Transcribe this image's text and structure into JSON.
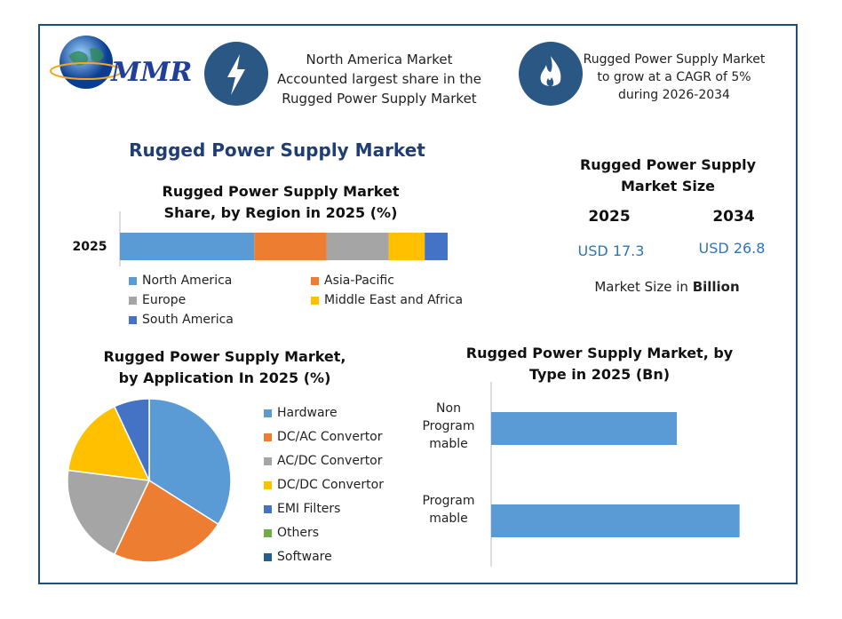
{
  "header": {
    "logo": "MMR",
    "highlights": [
      "North America Market Accounted largest share in the Rugged Power Supply Market",
      "Rugged Power Supply Market to grow at a CAGR of 5% during 2026-2034"
    ]
  },
  "title": "Rugged Power Supply Market",
  "market_size": {
    "title": "Rugged Power Supply Market Size",
    "years": [
      "2025",
      "2034"
    ],
    "values": [
      "USD 17.3",
      "USD 26.8"
    ],
    "note": "Market Size in",
    "note_unit": "Billion"
  },
  "chart_data": [
    {
      "type": "stacked_bar",
      "title": "Rugged Power Supply Market Share, by Region in 2025 (%)",
      "categories": [
        "2025"
      ],
      "xlim": [
        0,
        100
      ],
      "series": [
        {
          "name": "North America",
          "color": "#5b9bd5",
          "values": [
            41
          ]
        },
        {
          "name": "Asia-Pacific",
          "color": "#ed7d31",
          "values": [
            22
          ]
        },
        {
          "name": "Europe",
          "color": "#a5a5a5",
          "values": [
            19
          ]
        },
        {
          "name": "Middle East and Africa",
          "color": "#ffc000",
          "values": [
            11
          ]
        },
        {
          "name": "South America",
          "color": "#4472c4",
          "values": [
            7
          ]
        }
      ]
    },
    {
      "type": "pie",
      "title": "Rugged Power Supply Market, by Application In 2025 (%)",
      "categories": [
        "Hardware",
        "DC/AC Convertor",
        "AC/DC Convertor",
        "DC/DC Convertor",
        "EMI Filters",
        "Others",
        "Software"
      ],
      "values": [
        34,
        23,
        20,
        16,
        7,
        0,
        0
      ],
      "colors": [
        "#5b9bd5",
        "#ed7d31",
        "#a5a5a5",
        "#ffc000",
        "#4472c4",
        "#70ad47",
        "#255e91"
      ]
    },
    {
      "type": "hbar",
      "title": "Rugged Power Supply Market, by Type in 2025 (Bn)",
      "categories": [
        "Non Programmable",
        "Programmable"
      ],
      "values": [
        7.4,
        9.9
      ],
      "color": "#5b9bd5",
      "xlim": [
        0,
        12
      ]
    }
  ]
}
